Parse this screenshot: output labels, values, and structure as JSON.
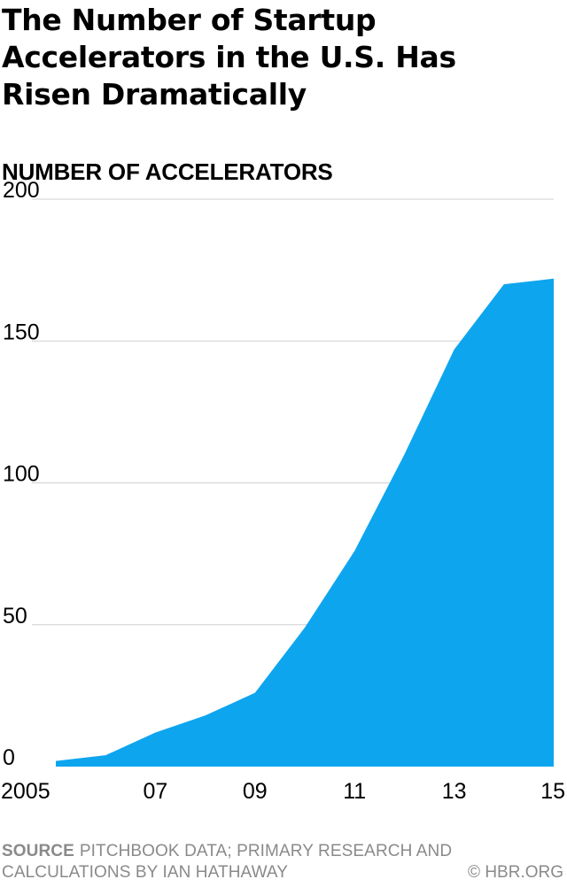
{
  "chart_data": {
    "type": "area",
    "title": "The Number of Startup Accelerators in the U.S. Has Risen Dramatically",
    "ylabel": "NUMBER OF ACCELERATORS",
    "xlabel": "",
    "x": [
      2005,
      2006,
      2007,
      2008,
      2009,
      2010,
      2011,
      2012,
      2013,
      2014,
      2015
    ],
    "x_tick_values": [
      2005,
      2007,
      2009,
      2011,
      2013,
      2015
    ],
    "x_tick_labels": [
      "2005",
      "07",
      "09",
      "11",
      "13",
      "15"
    ],
    "y_tick_values": [
      0,
      50,
      100,
      150,
      200
    ],
    "y_tick_labels": [
      "0",
      "50",
      "100",
      "150",
      "200"
    ],
    "xlim": [
      2005,
      2015
    ],
    "ylim": [
      0,
      200
    ],
    "grid": true,
    "series": [
      {
        "values": [
          2,
          4,
          12,
          18,
          26,
          49,
          76,
          110,
          147,
          170,
          172
        ],
        "color": "#0ea5ef"
      }
    ]
  },
  "footer": {
    "source_label": "SOURCE",
    "source_text": "PITCHBOOK DATA; PRIMARY RESEARCH AND CALCULATIONS BY IAN HATHAWAY",
    "credit": "© HBR.ORG"
  },
  "colors": {
    "area": "#0ea5ef",
    "grid": "#d0d0d0",
    "footer_text": "#8a8a8a"
  }
}
